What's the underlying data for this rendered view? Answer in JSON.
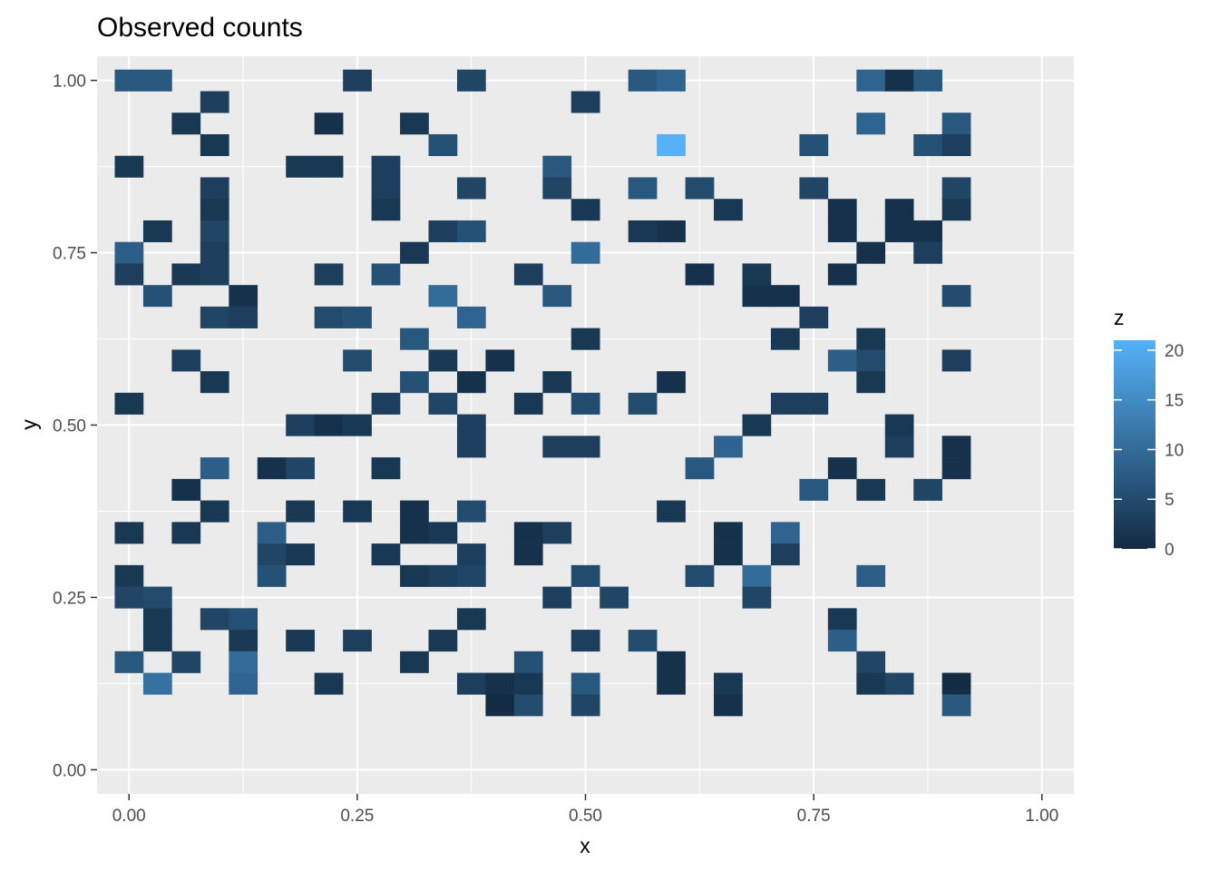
{
  "chart_data": {
    "type": "heatmap",
    "title": "Observed counts",
    "xlabel": "x",
    "ylabel": "y",
    "xlim": [
      -0.035,
      1.035
    ],
    "ylim": [
      -0.035,
      1.035
    ],
    "x_ticks": [
      0,
      0.25,
      0.5,
      0.75,
      1
    ],
    "x_tick_labels": [
      "0.00",
      "0.25",
      "0.50",
      "0.75",
      "1.00"
    ],
    "y_ticks": [
      0,
      0.25,
      0.5,
      0.75,
      1
    ],
    "y_tick_labels": [
      "0.00",
      "0.25",
      "0.50",
      "0.75",
      "1.00"
    ],
    "grid": true,
    "bin_width": 0.03125,
    "legend": {
      "title": "z",
      "position": "right",
      "range": [
        0,
        21
      ],
      "ticks": [
        0,
        5,
        10,
        15,
        20
      ],
      "tick_labels": [
        "0",
        "5",
        "10",
        "15",
        "20"
      ],
      "low_color": "#132B43",
      "high_color": "#56B1F7"
    },
    "cells": [
      {
        "col": 0,
        "row": 32,
        "value": 7
      },
      {
        "col": 1,
        "row": 32,
        "value": 7
      },
      {
        "col": 8,
        "row": 32,
        "value": 3
      },
      {
        "col": 12,
        "row": 32,
        "value": 4
      },
      {
        "col": 18,
        "row": 32,
        "value": 7
      },
      {
        "col": 19,
        "row": 32,
        "value": 9
      },
      {
        "col": 26,
        "row": 32,
        "value": 9
      },
      {
        "col": 27,
        "row": 32,
        "value": 1
      },
      {
        "col": 28,
        "row": 32,
        "value": 7
      },
      {
        "col": 3,
        "row": 31,
        "value": 3
      },
      {
        "col": 16,
        "row": 31,
        "value": 3
      },
      {
        "col": 2,
        "row": 30,
        "value": 2
      },
      {
        "col": 7,
        "row": 30,
        "value": 1
      },
      {
        "col": 10,
        "row": 30,
        "value": 2
      },
      {
        "col": 26,
        "row": 30,
        "value": 9
      },
      {
        "col": 29,
        "row": 30,
        "value": 7
      },
      {
        "col": 3,
        "row": 29,
        "value": 2
      },
      {
        "col": 11,
        "row": 29,
        "value": 6
      },
      {
        "col": 19,
        "row": 29,
        "value": 21
      },
      {
        "col": 24,
        "row": 29,
        "value": 6
      },
      {
        "col": 28,
        "row": 29,
        "value": 6
      },
      {
        "col": 29,
        "row": 29,
        "value": 3
      },
      {
        "col": 0,
        "row": 28,
        "value": 2
      },
      {
        "col": 6,
        "row": 28,
        "value": 2
      },
      {
        "col": 7,
        "row": 28,
        "value": 2
      },
      {
        "col": 9,
        "row": 28,
        "value": 3
      },
      {
        "col": 15,
        "row": 28,
        "value": 7
      },
      {
        "col": 3,
        "row": 27,
        "value": 3
      },
      {
        "col": 9,
        "row": 27,
        "value": 3
      },
      {
        "col": 12,
        "row": 27,
        "value": 4
      },
      {
        "col": 15,
        "row": 27,
        "value": 4
      },
      {
        "col": 18,
        "row": 27,
        "value": 7
      },
      {
        "col": 20,
        "row": 27,
        "value": 5
      },
      {
        "col": 24,
        "row": 27,
        "value": 4
      },
      {
        "col": 29,
        "row": 27,
        "value": 4
      },
      {
        "col": 3,
        "row": 26,
        "value": 2
      },
      {
        "col": 9,
        "row": 26,
        "value": 2
      },
      {
        "col": 16,
        "row": 26,
        "value": 2
      },
      {
        "col": 21,
        "row": 26,
        "value": 2
      },
      {
        "col": 25,
        "row": 26,
        "value": 1
      },
      {
        "col": 27,
        "row": 26,
        "value": 1
      },
      {
        "col": 29,
        "row": 26,
        "value": 2
      },
      {
        "col": 1,
        "row": 25,
        "value": 2
      },
      {
        "col": 3,
        "row": 25,
        "value": 4
      },
      {
        "col": 11,
        "row": 25,
        "value": 3
      },
      {
        "col": 12,
        "row": 25,
        "value": 6
      },
      {
        "col": 18,
        "row": 25,
        "value": 2
      },
      {
        "col": 19,
        "row": 25,
        "value": 1
      },
      {
        "col": 25,
        "row": 25,
        "value": 1
      },
      {
        "col": 27,
        "row": 25,
        "value": 1
      },
      {
        "col": 28,
        "row": 25,
        "value": 1
      },
      {
        "col": 0,
        "row": 24,
        "value": 8
      },
      {
        "col": 3,
        "row": 24,
        "value": 3
      },
      {
        "col": 10,
        "row": 24,
        "value": 2
      },
      {
        "col": 16,
        "row": 24,
        "value": 10
      },
      {
        "col": 26,
        "row": 24,
        "value": 1
      },
      {
        "col": 28,
        "row": 24,
        "value": 3
      },
      {
        "col": 0,
        "row": 23,
        "value": 3
      },
      {
        "col": 2,
        "row": 23,
        "value": 2
      },
      {
        "col": 3,
        "row": 23,
        "value": 3
      },
      {
        "col": 7,
        "row": 23,
        "value": 3
      },
      {
        "col": 9,
        "row": 23,
        "value": 6
      },
      {
        "col": 14,
        "row": 23,
        "value": 3
      },
      {
        "col": 20,
        "row": 23,
        "value": 1
      },
      {
        "col": 22,
        "row": 23,
        "value": 2
      },
      {
        "col": 25,
        "row": 23,
        "value": 1
      },
      {
        "col": 1,
        "row": 22,
        "value": 6
      },
      {
        "col": 4,
        "row": 22,
        "value": 1
      },
      {
        "col": 11,
        "row": 22,
        "value": 10
      },
      {
        "col": 15,
        "row": 22,
        "value": 7
      },
      {
        "col": 22,
        "row": 22,
        "value": 1
      },
      {
        "col": 23,
        "row": 22,
        "value": 1
      },
      {
        "col": 29,
        "row": 22,
        "value": 5
      },
      {
        "col": 3,
        "row": 21,
        "value": 4
      },
      {
        "col": 4,
        "row": 21,
        "value": 3
      },
      {
        "col": 7,
        "row": 21,
        "value": 5
      },
      {
        "col": 8,
        "row": 21,
        "value": 6
      },
      {
        "col": 12,
        "row": 21,
        "value": 9
      },
      {
        "col": 24,
        "row": 21,
        "value": 3
      },
      {
        "col": 10,
        "row": 20,
        "value": 7
      },
      {
        "col": 16,
        "row": 20,
        "value": 2
      },
      {
        "col": 23,
        "row": 20,
        "value": 2
      },
      {
        "col": 26,
        "row": 20,
        "value": 2
      },
      {
        "col": 2,
        "row": 19,
        "value": 3
      },
      {
        "col": 8,
        "row": 19,
        "value": 5
      },
      {
        "col": 11,
        "row": 19,
        "value": 2
      },
      {
        "col": 13,
        "row": 19,
        "value": 1
      },
      {
        "col": 25,
        "row": 19,
        "value": 8
      },
      {
        "col": 26,
        "row": 19,
        "value": 5
      },
      {
        "col": 29,
        "row": 19,
        "value": 3
      },
      {
        "col": 3,
        "row": 18,
        "value": 2
      },
      {
        "col": 10,
        "row": 18,
        "value": 6
      },
      {
        "col": 12,
        "row": 18,
        "value": 1
      },
      {
        "col": 15,
        "row": 18,
        "value": 2
      },
      {
        "col": 19,
        "row": 18,
        "value": 1
      },
      {
        "col": 26,
        "row": 18,
        "value": 2
      },
      {
        "col": 0,
        "row": 17,
        "value": 2
      },
      {
        "col": 9,
        "row": 17,
        "value": 3
      },
      {
        "col": 11,
        "row": 17,
        "value": 4
      },
      {
        "col": 14,
        "row": 17,
        "value": 2
      },
      {
        "col": 16,
        "row": 17,
        "value": 5
      },
      {
        "col": 18,
        "row": 17,
        "value": 5
      },
      {
        "col": 23,
        "row": 17,
        "value": 3
      },
      {
        "col": 24,
        "row": 17,
        "value": 3
      },
      {
        "col": 6,
        "row": 16,
        "value": 3
      },
      {
        "col": 7,
        "row": 16,
        "value": 1
      },
      {
        "col": 8,
        "row": 16,
        "value": 2
      },
      {
        "col": 12,
        "row": 16,
        "value": 3
      },
      {
        "col": 22,
        "row": 16,
        "value": 2
      },
      {
        "col": 27,
        "row": 16,
        "value": 2
      },
      {
        "col": 12,
        "row": 15,
        "value": 3
      },
      {
        "col": 15,
        "row": 15,
        "value": 3
      },
      {
        "col": 16,
        "row": 15,
        "value": 3
      },
      {
        "col": 21,
        "row": 15,
        "value": 9
      },
      {
        "col": 27,
        "row": 15,
        "value": 3
      },
      {
        "col": 29,
        "row": 15,
        "value": 1
      },
      {
        "col": 3,
        "row": 14,
        "value": 8
      },
      {
        "col": 5,
        "row": 14,
        "value": 1
      },
      {
        "col": 6,
        "row": 14,
        "value": 4
      },
      {
        "col": 9,
        "row": 14,
        "value": 2
      },
      {
        "col": 20,
        "row": 14,
        "value": 7
      },
      {
        "col": 25,
        "row": 14,
        "value": 1
      },
      {
        "col": 29,
        "row": 14,
        "value": 1
      },
      {
        "col": 2,
        "row": 13,
        "value": 1
      },
      {
        "col": 24,
        "row": 13,
        "value": 7
      },
      {
        "col": 26,
        "row": 13,
        "value": 2
      },
      {
        "col": 28,
        "row": 13,
        "value": 4
      },
      {
        "col": 3,
        "row": 12,
        "value": 2
      },
      {
        "col": 6,
        "row": 12,
        "value": 2
      },
      {
        "col": 8,
        "row": 12,
        "value": 2
      },
      {
        "col": 10,
        "row": 12,
        "value": 1
      },
      {
        "col": 12,
        "row": 12,
        "value": 5
      },
      {
        "col": 19,
        "row": 12,
        "value": 2
      },
      {
        "col": 0,
        "row": 11,
        "value": 2
      },
      {
        "col": 2,
        "row": 11,
        "value": 2
      },
      {
        "col": 5,
        "row": 11,
        "value": 8
      },
      {
        "col": 10,
        "row": 11,
        "value": 1
      },
      {
        "col": 11,
        "row": 11,
        "value": 2
      },
      {
        "col": 14,
        "row": 11,
        "value": 1
      },
      {
        "col": 15,
        "row": 11,
        "value": 3
      },
      {
        "col": 21,
        "row": 11,
        "value": 1
      },
      {
        "col": 23,
        "row": 11,
        "value": 9
      },
      {
        "col": 5,
        "row": 10,
        "value": 4
      },
      {
        "col": 6,
        "row": 10,
        "value": 2
      },
      {
        "col": 9,
        "row": 10,
        "value": 2
      },
      {
        "col": 12,
        "row": 10,
        "value": 3
      },
      {
        "col": 14,
        "row": 10,
        "value": 1
      },
      {
        "col": 21,
        "row": 10,
        "value": 1
      },
      {
        "col": 23,
        "row": 10,
        "value": 3
      },
      {
        "col": 0,
        "row": 9,
        "value": 2
      },
      {
        "col": 5,
        "row": 9,
        "value": 6
      },
      {
        "col": 10,
        "row": 9,
        "value": 2
      },
      {
        "col": 11,
        "row": 9,
        "value": 3
      },
      {
        "col": 12,
        "row": 9,
        "value": 4
      },
      {
        "col": 16,
        "row": 9,
        "value": 5
      },
      {
        "col": 20,
        "row": 9,
        "value": 5
      },
      {
        "col": 22,
        "row": 9,
        "value": 10
      },
      {
        "col": 26,
        "row": 9,
        "value": 8
      },
      {
        "col": 0,
        "row": 8,
        "value": 4
      },
      {
        "col": 1,
        "row": 8,
        "value": 5
      },
      {
        "col": 15,
        "row": 8,
        "value": 3
      },
      {
        "col": 17,
        "row": 8,
        "value": 4
      },
      {
        "col": 22,
        "row": 8,
        "value": 4
      },
      {
        "col": 1,
        "row": 7,
        "value": 2
      },
      {
        "col": 3,
        "row": 7,
        "value": 4
      },
      {
        "col": 4,
        "row": 7,
        "value": 6
      },
      {
        "col": 12,
        "row": 7,
        "value": 2
      },
      {
        "col": 25,
        "row": 7,
        "value": 2
      },
      {
        "col": 1,
        "row": 6,
        "value": 2
      },
      {
        "col": 4,
        "row": 6,
        "value": 2
      },
      {
        "col": 6,
        "row": 6,
        "value": 2
      },
      {
        "col": 8,
        "row": 6,
        "value": 3
      },
      {
        "col": 11,
        "row": 6,
        "value": 2
      },
      {
        "col": 16,
        "row": 6,
        "value": 3
      },
      {
        "col": 18,
        "row": 6,
        "value": 5
      },
      {
        "col": 25,
        "row": 6,
        "value": 8
      },
      {
        "col": 0,
        "row": 5,
        "value": 7
      },
      {
        "col": 2,
        "row": 5,
        "value": 4
      },
      {
        "col": 4,
        "row": 5,
        "value": 10
      },
      {
        "col": 10,
        "row": 5,
        "value": 2
      },
      {
        "col": 14,
        "row": 5,
        "value": 6
      },
      {
        "col": 19,
        "row": 5,
        "value": 1
      },
      {
        "col": 26,
        "row": 5,
        "value": 4
      },
      {
        "col": 1,
        "row": 4,
        "value": 11
      },
      {
        "col": 4,
        "row": 4,
        "value": 9
      },
      {
        "col": 7,
        "row": 4,
        "value": 2
      },
      {
        "col": 12,
        "row": 4,
        "value": 3
      },
      {
        "col": 13,
        "row": 4,
        "value": 1
      },
      {
        "col": 14,
        "row": 4,
        "value": 2
      },
      {
        "col": 16,
        "row": 4,
        "value": 7
      },
      {
        "col": 19,
        "row": 4,
        "value": 1
      },
      {
        "col": 21,
        "row": 4,
        "value": 2
      },
      {
        "col": 26,
        "row": 4,
        "value": 2
      },
      {
        "col": 27,
        "row": 4,
        "value": 4
      },
      {
        "col": 29,
        "row": 4,
        "value": 0
      },
      {
        "col": 13,
        "row": 3,
        "value": 0
      },
      {
        "col": 14,
        "row": 3,
        "value": 5
      },
      {
        "col": 16,
        "row": 3,
        "value": 4
      },
      {
        "col": 21,
        "row": 3,
        "value": 1
      },
      {
        "col": 29,
        "row": 3,
        "value": 7
      }
    ]
  }
}
